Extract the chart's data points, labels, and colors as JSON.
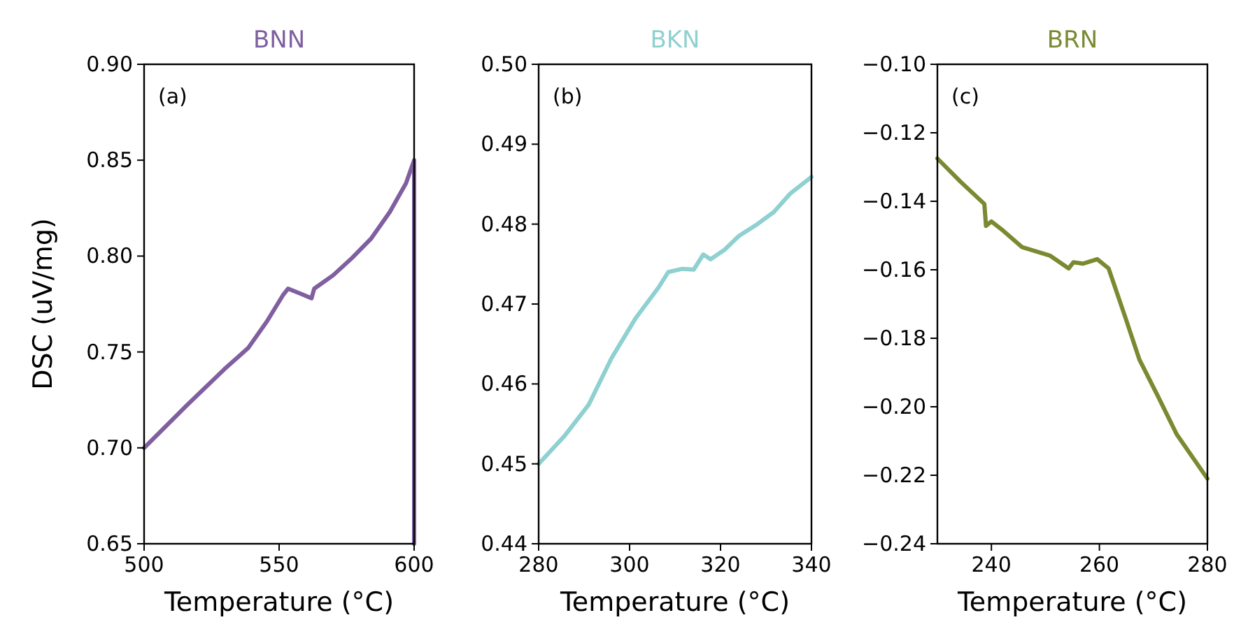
{
  "chart_data": [
    {
      "type": "line",
      "title": "BNN",
      "xlabel": "Temperature (°C)",
      "ylabel": "DSC (uV/mg)",
      "annotations": [
        "(a)"
      ],
      "xlim": [
        500,
        600
      ],
      "xticks": [
        500,
        550,
        600
      ],
      "ylim": [
        0.65,
        0.9
      ],
      "yticks": [
        {
          "value": 0.65,
          "label": "0.65"
        },
        {
          "value": 0.7,
          "label": "0.70"
        },
        {
          "value": 0.75,
          "label": "0.75"
        },
        {
          "value": 0.8,
          "label": "0.80"
        },
        {
          "value": 0.85,
          "label": "0.85"
        },
        {
          "value": 0.9,
          "label": "0.90"
        }
      ],
      "series": [
        {
          "color": "#7f5fa0",
          "x": [
            500,
            515.7,
            529.7,
            538.5,
            545.5,
            551.6,
            553.3,
            558.6,
            562,
            563,
            570,
            577,
            584,
            591,
            597,
            600,
            600
          ],
          "values": [
            0.7,
            0.722,
            0.741,
            0.752,
            0.766,
            0.78,
            0.783,
            0.78,
            0.778,
            0.783,
            0.79,
            0.799,
            0.809,
            0.823,
            0.838,
            0.85,
            0.65
          ]
        }
      ]
    },
    {
      "type": "line",
      "title": "BKN",
      "xlabel": "Temperature (°C)",
      "annotations": [
        "(b)"
      ],
      "xlim": [
        280,
        340
      ],
      "xticks": [
        280,
        300,
        320,
        340
      ],
      "ylim": [
        0.44,
        0.5
      ],
      "yticks": [
        {
          "value": 0.44,
          "label": "0.44"
        },
        {
          "value": 0.45,
          "label": "0.45"
        },
        {
          "value": 0.46,
          "label": "0.46"
        },
        {
          "value": 0.47,
          "label": "0.47"
        },
        {
          "value": 0.48,
          "label": "0.48"
        },
        {
          "value": 0.49,
          "label": "0.49"
        },
        {
          "value": 0.5,
          "label": "0.50"
        }
      ],
      "series": [
        {
          "color": "#8fd0d0",
          "x": [
            280,
            285.7,
            291,
            296,
            301.3,
            306.4,
            308.5,
            311.6,
            314.1,
            316.2,
            317.8,
            320.9,
            324,
            328.1,
            331.7,
            335.3,
            340
          ],
          "values": [
            0.45,
            0.4535,
            0.4574,
            0.4632,
            0.4682,
            0.4721,
            0.474,
            0.4744,
            0.4743,
            0.4762,
            0.4756,
            0.4768,
            0.4785,
            0.48,
            0.4815,
            0.4838,
            0.4859
          ]
        }
      ]
    },
    {
      "type": "line",
      "title": "BRN",
      "xlabel": "Temperature (°C)",
      "annotations": [
        "(c)"
      ],
      "xlim": [
        230,
        280
      ],
      "xticks": [
        240,
        260,
        280
      ],
      "ylim": [
        -0.24,
        -0.1
      ],
      "yticks": [
        {
          "value": -0.24,
          "label": "−0.24"
        },
        {
          "value": -0.22,
          "label": "−0.22"
        },
        {
          "value": -0.2,
          "label": "−0.20"
        },
        {
          "value": -0.18,
          "label": "−0.18"
        },
        {
          "value": -0.16,
          "label": "−0.16"
        },
        {
          "value": -0.14,
          "label": "−0.14"
        },
        {
          "value": -0.12,
          "label": "−0.12"
        },
        {
          "value": -0.1,
          "label": "−0.10"
        }
      ],
      "series": [
        {
          "color": "#7a8a30",
          "x": [
            230,
            234.3,
            238.7,
            239,
            240,
            242.2,
            245.7,
            250.9,
            254.3,
            255.2,
            257,
            259.6,
            261.7,
            264.8,
            267.4,
            270.9,
            274.3,
            280
          ],
          "values": [
            -0.1275,
            -0.1343,
            -0.1408,
            -0.1472,
            -0.1459,
            -0.1486,
            -0.1534,
            -0.1559,
            -0.1596,
            -0.1578,
            -0.1582,
            -0.1569,
            -0.1596,
            -0.1739,
            -0.1862,
            -0.1971,
            -0.208,
            -0.221
          ]
        }
      ]
    }
  ]
}
